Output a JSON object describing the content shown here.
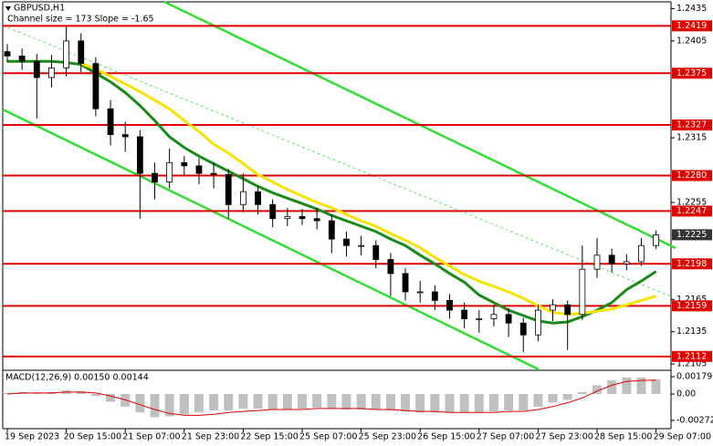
{
  "chart_data": [
    {
      "type": "candlestick",
      "title": "GBPUSD,H1",
      "subtitle": "Channel size = 173  Slope = -1.65",
      "categories": [
        "19 Sep 2023",
        null,
        null,
        null,
        "20 Sep 15:00",
        null,
        null,
        null,
        "21 Sep 07:00",
        null,
        null,
        null,
        "21 Sep 23:00",
        null,
        null,
        null,
        "22 Sep 15:00",
        null,
        null,
        null,
        "25 Sep 07:00",
        null,
        null,
        null,
        "25 Sep 23:00",
        null,
        null,
        null,
        "26 Sep 15:00",
        null,
        null,
        null,
        "27 Sep 07:00",
        null,
        null,
        null,
        "27 Sep 23:00",
        null,
        null,
        null,
        "28 Sep 15:00",
        null,
        null,
        null,
        "29 Sep 07:00"
      ],
      "open": [
        1.2395,
        1.2391,
        1.2386,
        1.2371,
        1.238,
        1.2405,
        1.2384,
        1.2342,
        1.2318,
        1.2316,
        1.2282,
        1.2274,
        1.2292,
        1.2289,
        1.2282,
        1.2281,
        1.2253,
        1.2265,
        1.2253,
        1.224,
        1.2242,
        1.224,
        1.2238,
        1.2221,
        1.2215,
        1.2215,
        1.2202,
        1.2189,
        1.2172,
        1.2172,
        1.2164,
        1.2155,
        1.2147,
        1.2147,
        1.2151,
        1.2143,
        1.2132,
        1.2155,
        1.216,
        1.2151,
        1.2193,
        1.2206,
        1.2198,
        1.22,
        1.2215
      ],
      "high": [
        1.2402,
        1.2398,
        1.2393,
        1.2392,
        1.2418,
        1.2412,
        1.239,
        1.235,
        1.233,
        1.2322,
        1.2292,
        1.2305,
        1.2298,
        1.2296,
        1.2292,
        1.2286,
        1.2282,
        1.227,
        1.2258,
        1.225,
        1.2249,
        1.225,
        1.2244,
        1.2228,
        1.2224,
        1.222,
        1.2208,
        1.2194,
        1.2182,
        1.2178,
        1.217,
        1.2162,
        1.2155,
        1.216,
        1.2157,
        1.2148,
        1.216,
        1.2165,
        1.2164,
        1.2215,
        1.2222,
        1.2212,
        1.2207,
        1.2222,
        1.2229
      ],
      "low": [
        1.2385,
        1.2378,
        1.2333,
        1.2362,
        1.2372,
        1.2376,
        1.2335,
        1.2308,
        1.2302,
        1.224,
        1.2258,
        1.2268,
        1.228,
        1.2272,
        1.2268,
        1.224,
        1.2246,
        1.2244,
        1.2232,
        1.2233,
        1.2234,
        1.223,
        1.2208,
        1.2205,
        1.2206,
        1.2194,
        1.2168,
        1.2164,
        1.2162,
        1.2155,
        1.2147,
        1.2138,
        1.2134,
        1.214,
        1.213,
        1.2116,
        1.2126,
        1.2145,
        1.2118,
        1.2146,
        1.2185,
        1.219,
        1.2192,
        1.2196,
        1.2212
      ],
      "close": [
        1.2391,
        1.2386,
        1.2371,
        1.238,
        1.2405,
        1.2384,
        1.2342,
        1.2318,
        1.2316,
        1.2282,
        1.2274,
        1.2292,
        1.2289,
        1.2282,
        1.2281,
        1.2253,
        1.2265,
        1.2253,
        1.224,
        1.2242,
        1.224,
        1.2238,
        1.2221,
        1.2215,
        1.2215,
        1.2202,
        1.2189,
        1.2172,
        1.2172,
        1.2164,
        1.2155,
        1.2147,
        1.2147,
        1.2151,
        1.2143,
        1.2132,
        1.2155,
        1.216,
        1.2151,
        1.2193,
        1.2206,
        1.2198,
        1.22,
        1.2215,
        1.2225
      ],
      "series": [
        {
          "color": "#1a8a1a",
          "values": [
            1.2386,
            1.2386,
            1.2386,
            1.2386,
            1.2385,
            1.2383,
            1.2375,
            1.2367,
            1.2357,
            1.2345,
            1.2331,
            1.2316,
            1.2306,
            1.2298,
            1.2291,
            1.2284,
            1.2277,
            1.227,
            1.2264,
            1.2259,
            1.2254,
            1.2249,
            1.2243,
            1.2238,
            1.2233,
            1.2228,
            1.2221,
            1.2215,
            1.2206,
            1.2198,
            1.2189,
            1.2181,
            1.2169,
            1.2162,
            1.2155,
            1.215,
            1.2145,
            1.2143,
            1.2144,
            1.2149,
            1.2155,
            1.2162,
            1.2174,
            1.2182,
            1.2191
          ]
        },
        {
          "color": "#f5e400",
          "values": [
            null,
            null,
            null,
            null,
            null,
            1.2384,
            1.2379,
            1.2372,
            1.2365,
            1.2358,
            1.235,
            1.2342,
            1.2331,
            1.2321,
            1.2309,
            1.2301,
            1.2291,
            1.2281,
            1.2274,
            1.2267,
            1.2261,
            1.2255,
            1.225,
            1.2244,
            1.2238,
            1.2233,
            1.2226,
            1.222,
            1.2213,
            1.2204,
            1.2196,
            1.2188,
            1.2182,
            1.2177,
            1.2172,
            1.2166,
            1.2159,
            1.2153,
            1.2151,
            1.2152,
            1.2154,
            1.2156,
            1.216,
            1.2164,
            1.2168
          ]
        }
      ],
      "levels": [
        1.2419,
        1.2375,
        1.2327,
        {
          "value": 1.228,
          "label": "1.2280"
        },
        1.2247,
        1.2198,
        1.2159,
        1.2112
      ],
      "level_color": "#e00000",
      "ylim": [
        1.21,
        1.2443
      ],
      "yticks": [
        1.2435,
        1.2405,
        1.2315,
        1.2255,
        1.2165,
        1.2135,
        1.2105
      ]
    },
    {
      "type": "macd",
      "title": "MACD(12,26,9) 0.00150 0.00144",
      "values": [
        0.0001,
        0.0002,
        0.0001,
        0.0002,
        0.0004,
        0.0003,
        -0.0002,
        -0.0008,
        -0.0013,
        -0.0019,
        -0.0024,
        -0.0023,
        -0.0021,
        -0.0019,
        -0.0017,
        -0.0017,
        -0.0015,
        -0.0015,
        -0.0016,
        -0.0016,
        -0.0015,
        -0.0014,
        -0.0015,
        -0.0016,
        -0.0016,
        -0.0016,
        -0.0017,
        -0.0018,
        -0.0019,
        -0.0019,
        -0.0019,
        -0.0019,
        -0.0019,
        -0.0018,
        -0.0017,
        -0.0017,
        -0.0013,
        -0.0009,
        -0.0006,
        0.0002,
        0.0009,
        0.0014,
        0.0017,
        0.0017,
        0.0015
      ],
      "color": "#c0c0c0",
      "signal": {
        "color": "#e00000",
        "values": [
          0.0,
          0.0001,
          0.0001,
          0.0001,
          0.0002,
          0.0002,
          0.0001,
          -0.0002,
          -0.0006,
          -0.0011,
          -0.0016,
          -0.002,
          -0.0022,
          -0.0022,
          -0.0021,
          -0.0019,
          -0.0018,
          -0.0017,
          -0.0016,
          -0.0016,
          -0.0016,
          -0.0015,
          -0.0015,
          -0.0015,
          -0.0015,
          -0.0016,
          -0.0016,
          -0.0017,
          -0.0018,
          -0.0018,
          -0.0019,
          -0.0019,
          -0.0019,
          -0.0019,
          -0.0018,
          -0.0018,
          -0.0016,
          -0.0013,
          -0.0009,
          -0.0004,
          0.0003,
          0.0009,
          0.0013,
          0.0014,
          0.00144
        ]
      },
      "ylim": [
        -0.0032,
        0.00226
      ],
      "yticks": [
        0.00179,
        {
          "value": 0,
          "label": "0.00"
        },
        -0.00272
      ]
    }
  ]
}
